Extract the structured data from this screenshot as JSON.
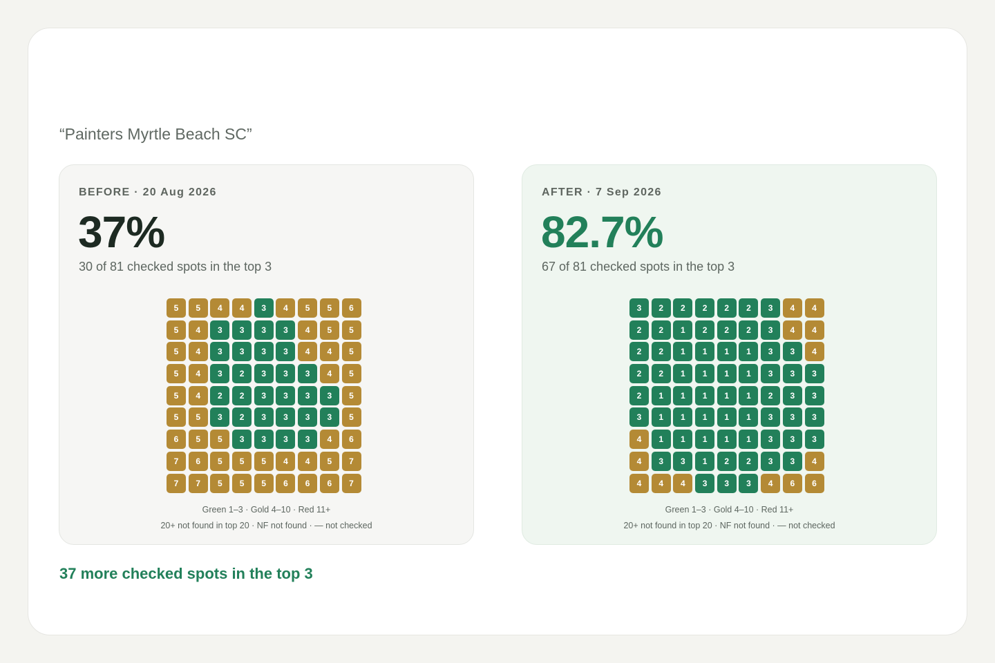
{
  "query": "“Painters Myrtle Beach SC”",
  "before": {
    "label": "BEFORE · 20 Aug 2026",
    "percent": "37%",
    "summary": "30 of 81 checked spots in the top 3",
    "grid": [
      [
        5,
        5,
        4,
        4,
        3,
        4,
        5,
        5,
        6
      ],
      [
        5,
        4,
        3,
        3,
        3,
        3,
        4,
        5,
        5
      ],
      [
        5,
        4,
        3,
        3,
        3,
        3,
        4,
        4,
        5
      ],
      [
        5,
        4,
        3,
        2,
        3,
        3,
        3,
        4,
        5
      ],
      [
        5,
        4,
        2,
        2,
        3,
        3,
        3,
        3,
        5
      ],
      [
        5,
        5,
        3,
        2,
        3,
        3,
        3,
        3,
        5
      ],
      [
        6,
        5,
        5,
        3,
        3,
        3,
        3,
        4,
        6
      ],
      [
        7,
        6,
        5,
        5,
        5,
        4,
        4,
        5,
        7
      ],
      [
        7,
        7,
        5,
        5,
        5,
        6,
        6,
        6,
        7
      ]
    ],
    "legend_line1": "Green 1–3 · Gold 4–10 · Red 11+",
    "legend_line2": "20+ not found in top 20 · NF not found · — not checked"
  },
  "after": {
    "label": "AFTER · 7 Sep 2026",
    "percent": "82.7%",
    "summary": "67 of 81 checked spots in the top 3",
    "grid": [
      [
        3,
        2,
        2,
        2,
        2,
        2,
        3,
        4,
        4
      ],
      [
        2,
        2,
        1,
        2,
        2,
        2,
        3,
        4,
        4
      ],
      [
        2,
        2,
        1,
        1,
        1,
        1,
        3,
        3,
        4
      ],
      [
        2,
        2,
        1,
        1,
        1,
        1,
        3,
        3,
        3
      ],
      [
        2,
        1,
        1,
        1,
        1,
        1,
        2,
        3,
        3
      ],
      [
        3,
        1,
        1,
        1,
        1,
        1,
        3,
        3,
        3
      ],
      [
        4,
        1,
        1,
        1,
        1,
        1,
        3,
        3,
        3
      ],
      [
        4,
        3,
        3,
        1,
        2,
        2,
        3,
        3,
        4
      ],
      [
        4,
        4,
        4,
        3,
        3,
        3,
        4,
        6,
        6
      ]
    ],
    "legend_line1": "Green 1–3 · Gold 4–10 · Red 11+",
    "legend_line2": "20+ not found in top 20 · NF not found · — not checked"
  },
  "delta": "37 more checked spots in the top 3",
  "colors": {
    "green": "#22805a",
    "gold": "#b48a35",
    "red": "#b8493a"
  }
}
